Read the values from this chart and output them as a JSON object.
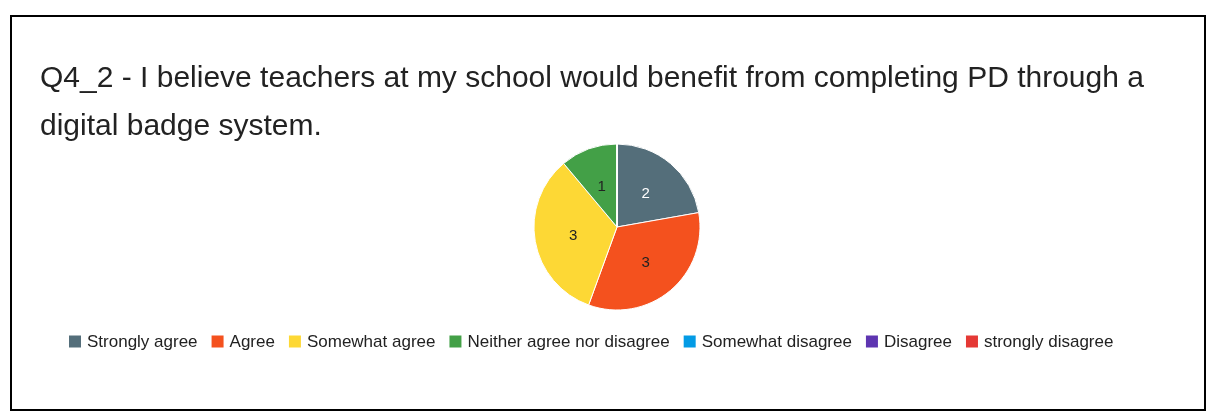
{
  "chart_data": {
    "type": "pie",
    "title": "Q4_2 - I believe teachers at my school would benefit from completing PD through a digital badge system.",
    "categories": [
      "Strongly agree",
      "Agree",
      "Somewhat agree",
      "Neither agree nor disagree",
      "Somewhat disagree",
      "Disagree",
      "strongly disagree"
    ],
    "values": [
      2,
      3,
      3,
      1,
      0,
      0,
      0
    ],
    "colors": [
      "#546e7a",
      "#f4511e",
      "#fdd835",
      "#43a047",
      "#039be5",
      "#5e35b1",
      "#e53935"
    ],
    "data_labels": true,
    "legend": "bottom"
  }
}
